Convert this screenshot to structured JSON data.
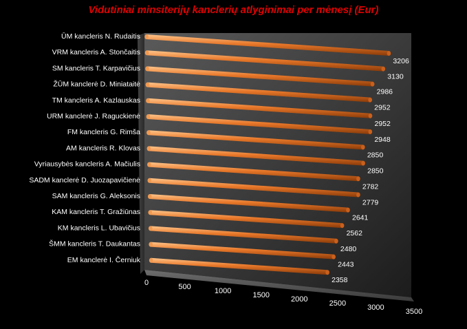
{
  "chart_data": {
    "type": "bar",
    "orientation": "horizontal",
    "title": "Vidutiniai minsiterijų kanclerių atlyginimai per mėnesį (Eur)",
    "xlabel": "",
    "ylabel": "",
    "xlim": [
      0,
      3500
    ],
    "x_ticks": [
      "0",
      "500",
      "1000",
      "1500",
      "2000",
      "2500",
      "3000",
      "3500"
    ],
    "grid": false,
    "legend": "none",
    "bar_color": "#e8782a",
    "categories": [
      "ŪM kancleris N. Rudaitis",
      "VRM kancleris A. Stončaitis",
      "SM kancleris T. Karpavičius",
      "ŽŪM kanclerė D. Miniataitė",
      "TM kancleris A. Kazlauskas",
      "URM kanclerė J. Raguckienė",
      "FM kancleris G. Rimša",
      "AM kancleris R. Klovas",
      "Vyriausybės kancleris A. Mačiulis",
      "SADM kanclerė D. Juozapavičienė",
      "SAM kancleris G. Aleksonis",
      "KAM kancleris T. Gražiūnas",
      "KM kancleris L. Ubavičius",
      "ŠMM kancleris T. Daukantas",
      "EM kanclerė I. Černiuk"
    ],
    "values": [
      3206,
      3130,
      2986,
      2952,
      2952,
      2948,
      2850,
      2850,
      2782,
      2779,
      2641,
      2562,
      2480,
      2443,
      2358
    ],
    "value_labels": [
      "3206",
      "3130",
      "2986",
      "2952",
      "2952",
      "2948",
      "2850",
      "2850",
      "2782",
      "2779",
      "2641",
      "2562",
      "2480",
      "2443",
      "2358"
    ]
  }
}
